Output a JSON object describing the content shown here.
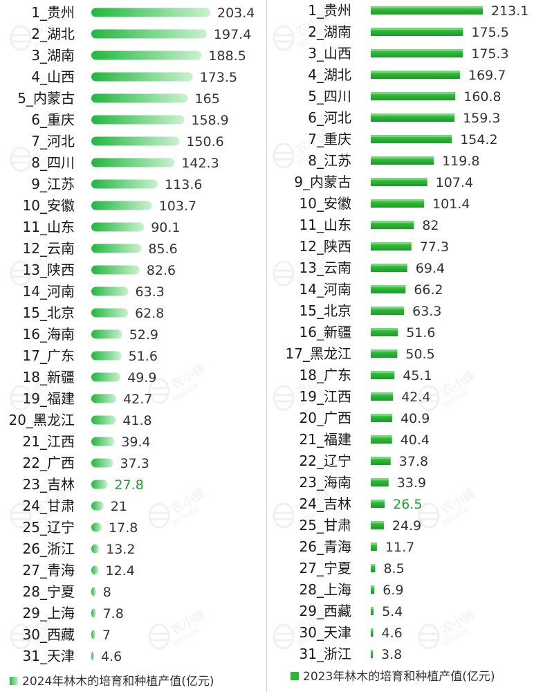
{
  "colors": {
    "left_bar_light": "#c9f1cf",
    "left_bar_dark": "#22b73f",
    "right_bar": "#2db536",
    "right_bar_top": "#5dd264",
    "highlight_value": "#1aa32b",
    "text": "#1a1a1a"
  },
  "watermark": {
    "text_cn": "农小蜂",
    "text_en": "BEEDATA"
  },
  "chart_data": [
    {
      "type": "bar",
      "orientation": "horizontal",
      "legend": "2024年林木的培育和种植产值(亿元)",
      "legend_position": "bottom",
      "highlight": "吉林",
      "categories": [
        "1_贵州",
        "2_湖北",
        "3_湖南",
        "4_山西",
        "5_内蒙古",
        "6_重庆",
        "7_河北",
        "8_四川",
        "9_江苏",
        "10_安徽",
        "11_山东",
        "12_云南",
        "13_陕西",
        "14_河南",
        "15_北京",
        "16_海南",
        "17_广东",
        "18_新疆",
        "19_福建",
        "20_黑龙江",
        "21_江西",
        "22_广西",
        "23_吉林",
        "24_甘肃",
        "25_辽宁",
        "26_浙江",
        "27_青海",
        "28_宁夏",
        "29_上海",
        "30_西藏",
        "31_天津"
      ],
      "values": [
        203.4,
        197.4,
        188.5,
        173.5,
        165,
        158.9,
        150.6,
        142.3,
        113.6,
        103.7,
        90.1,
        85.6,
        82.6,
        63.3,
        62.8,
        52.9,
        51.6,
        49.9,
        42.7,
        41.8,
        39.4,
        37.3,
        27.8,
        21,
        17.8,
        13.2,
        12.4,
        8,
        7.8,
        7,
        4.6
      ],
      "value_labels": [
        "203.4",
        "197.4",
        "188.5",
        "173.5",
        "165",
        "158.9",
        "150.6",
        "142.3",
        "113.6",
        "103.7",
        "90.1",
        "85.6",
        "82.6",
        "63.3",
        "62.8",
        "52.9",
        "51.6",
        "49.9",
        "42.7",
        "41.8",
        "39.4",
        "37.3",
        "27.8",
        "21",
        "17.8",
        "13.2",
        "12.4",
        "8",
        "7.8",
        "7",
        "4.6"
      ]
    },
    {
      "type": "bar",
      "orientation": "horizontal",
      "legend": "2023年林木的培育和种植产值(亿元)",
      "legend_position": "bottom",
      "highlight": "吉林",
      "categories": [
        "1_贵州",
        "2_湖南",
        "3_山西",
        "4_湖北",
        "5_四川",
        "6_河北",
        "7_重庆",
        "8_江苏",
        "9_内蒙古",
        "10_安徽",
        "11_山东",
        "12_陕西",
        "13_云南",
        "14_河南",
        "15_北京",
        "16_新疆",
        "17_黑龙江",
        "18_广东",
        "19_江西",
        "20_广西",
        "21_福建",
        "22_辽宁",
        "23_海南",
        "24_吉林",
        "25_甘肃",
        "26_青海",
        "27_宁夏",
        "28_上海",
        "29_西藏",
        "30_天津",
        "31_浙江"
      ],
      "values": [
        213.1,
        175.5,
        175.3,
        169.7,
        160.8,
        159.3,
        154.2,
        119.8,
        107.4,
        101.4,
        82,
        77.3,
        69.4,
        66.2,
        63.3,
        51.6,
        50.5,
        45.1,
        42.4,
        40.9,
        40.4,
        37.8,
        33.9,
        26.5,
        24.9,
        11.7,
        8.5,
        6.9,
        5.4,
        4.6,
        3.8
      ],
      "value_labels": [
        "213.1",
        "175.5",
        "175.3",
        "169.7",
        "160.8",
        "159.3",
        "154.2",
        "119.8",
        "107.4",
        "101.4",
        "82",
        "77.3",
        "69.4",
        "66.2",
        "63.3",
        "51.6",
        "50.5",
        "45.1",
        "42.4",
        "40.9",
        "40.4",
        "37.8",
        "33.9",
        "26.5",
        "24.9",
        "11.7",
        "8.5",
        "6.9",
        "5.4",
        "4.6",
        "3.8"
      ]
    }
  ]
}
